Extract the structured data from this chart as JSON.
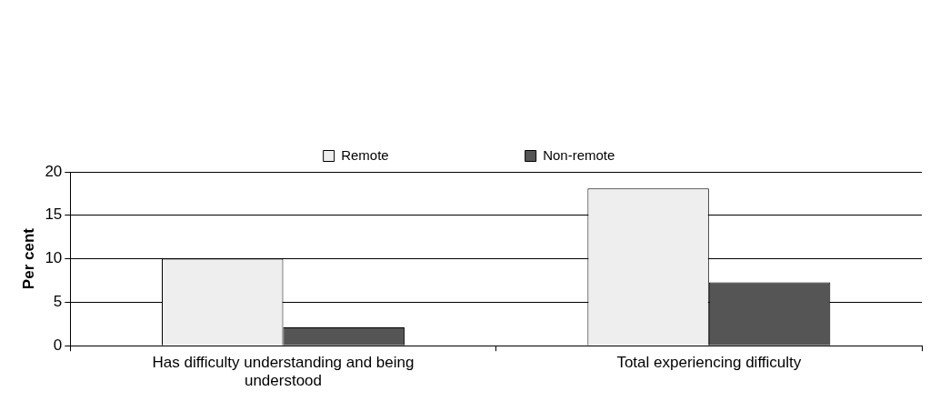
{
  "chart_data": {
    "type": "bar",
    "ylabel": "Per cent",
    "categories": [
      "Has difficulty understanding and being understood",
      "Total experiencing difficulty"
    ],
    "series": [
      {
        "name": "Remote",
        "color": "#eeeeee",
        "values": [
          10,
          18.1
        ]
      },
      {
        "name": "Non-remote",
        "color": "#555555",
        "values": [
          2.1,
          7.3
        ]
      }
    ],
    "ylim": [
      0,
      20
    ],
    "yticks": [
      0,
      5,
      10,
      15,
      20
    ],
    "grid": "y",
    "legend": "top"
  }
}
